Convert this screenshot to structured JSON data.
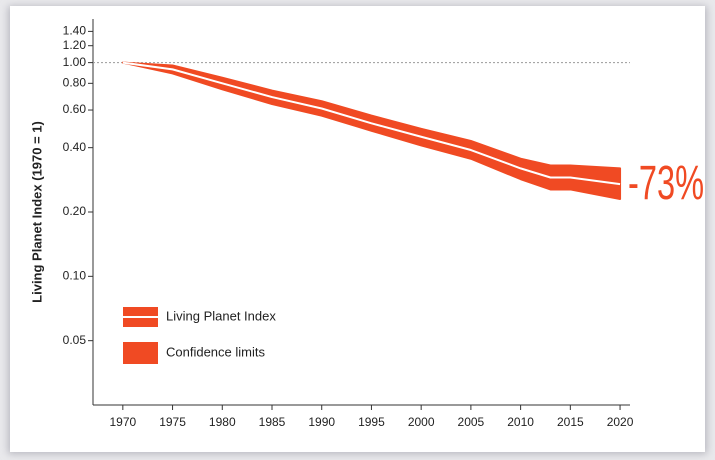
{
  "chart_data": {
    "type": "band-line",
    "y_label": "Living Planet Index (1970 = 1)",
    "annotation": "-73%",
    "x": [
      1970,
      1975,
      1980,
      1985,
      1990,
      1995,
      2000,
      2005,
      2010,
      2013,
      2015,
      2020
    ],
    "series": [
      {
        "name": "Living Planet Index",
        "color": "#ffffff",
        "values": [
          1.0,
          0.93,
          0.8,
          0.69,
          0.61,
          0.52,
          0.45,
          0.39,
          0.32,
          0.29,
          0.29,
          0.27
        ]
      },
      {
        "name": "Confidence limits",
        "color": "#f04a23",
        "upper": [
          1.0,
          0.97,
          0.85,
          0.74,
          0.66,
          0.565,
          0.49,
          0.43,
          0.355,
          0.33,
          0.33,
          0.32
        ],
        "lower": [
          1.0,
          0.89,
          0.75,
          0.64,
          0.565,
          0.48,
          0.41,
          0.355,
          0.285,
          0.255,
          0.255,
          0.23
        ]
      }
    ],
    "xlim": [
      1967,
      2021
    ],
    "xticks": [
      1970,
      1975,
      1980,
      1985,
      1990,
      1995,
      2000,
      2005,
      2010,
      2015,
      2020
    ],
    "ylim": [
      0.025,
      1.6
    ],
    "log_y": true,
    "yticks": [
      0.05,
      {
        "value": 0.1,
        "label": "0.10"
      },
      {
        "value": 0.2,
        "label": "0.20"
      },
      {
        "value": 0.4,
        "label": "0.40"
      },
      {
        "value": 0.6,
        "label": "0.60"
      },
      {
        "value": 0.8,
        "label": "0.80"
      },
      {
        "value": 1,
        "label": "1.00"
      },
      {
        "value": 1.2,
        "label": "1.20"
      },
      {
        "value": 1.4,
        "label": "1.40"
      }
    ],
    "reference_line": 1,
    "legend": "lower left"
  }
}
